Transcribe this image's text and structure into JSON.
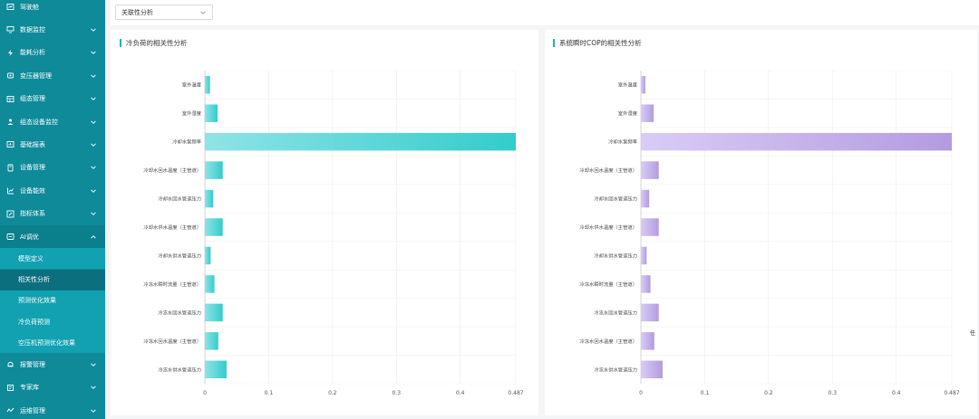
{
  "sidebar": {
    "items": [
      {
        "label": "驾驶舱",
        "icon": "dashboard-icon",
        "expandable": false
      },
      {
        "label": "数据监控",
        "icon": "monitor-icon",
        "expandable": true
      },
      {
        "label": "能耗分析",
        "icon": "energy-icon",
        "expandable": true
      },
      {
        "label": "变压器管理",
        "icon": "transformer-icon",
        "expandable": true
      },
      {
        "label": "组态管理",
        "icon": "config-icon",
        "expandable": true
      },
      {
        "label": "组态设备监控",
        "icon": "device-monitor-icon",
        "expandable": true
      },
      {
        "label": "基础报表",
        "icon": "report-icon",
        "expandable": true
      },
      {
        "label": "设备管理",
        "icon": "device-icon",
        "expandable": true
      },
      {
        "label": "设备能效",
        "icon": "efficiency-icon",
        "expandable": true
      },
      {
        "label": "指标体系",
        "icon": "indicator-icon",
        "expandable": true
      },
      {
        "label": "AI调优",
        "icon": "ai-icon",
        "expandable": true,
        "open": true
      }
    ],
    "ai_children": [
      {
        "label": "模型定义",
        "active": false
      },
      {
        "label": "相关性分析",
        "active": true
      },
      {
        "label": "预测优化效果",
        "active": false
      },
      {
        "label": "冷负荷预测",
        "active": false
      },
      {
        "label": "空压机预测优化效果",
        "active": false
      }
    ],
    "bottom_items": [
      {
        "label": "报警管理",
        "icon": "alarm-icon",
        "expandable": true
      },
      {
        "label": "专家库",
        "icon": "expert-icon",
        "expandable": true
      },
      {
        "label": "运维管理",
        "icon": "maintenance-icon",
        "expandable": true
      }
    ]
  },
  "filter": {
    "selected": "关联性分析"
  },
  "side_tab": "任",
  "colors": {
    "sidebar": "#0e8a99",
    "accent": "#1ab3c3",
    "cyan_bar": "#33cccc",
    "purple_bar": "#b9a3e3"
  },
  "chart_data": [
    {
      "type": "bar",
      "orientation": "horizontal",
      "title": "冷负荷的相关性分析",
      "categories": [
        "室外温度",
        "室外湿度",
        "冷却水泵频率",
        "冷却水回水温度（主管道）",
        "冷却水回水管道压力",
        "冷却水供水温度（主管道）",
        "冷却水供水管道压力",
        "冷冻水瞬时流量（主管道）",
        "冷冻水回水管道压力",
        "冷冻水回水温度（主管道）",
        "冷冻水供水管道压力"
      ],
      "values": [
        0.008,
        0.02,
        0.487,
        0.028,
        0.013,
        0.028,
        0.009,
        0.015,
        0.028,
        0.021,
        0.034
      ],
      "xlim": [
        0,
        0.487
      ],
      "xticks": [
        "0",
        "0.1",
        "0.2",
        "0.3",
        "0.4",
        "0.487"
      ],
      "grid": true,
      "color": "cyan"
    },
    {
      "type": "bar",
      "orientation": "horizontal",
      "title": "系统瞬时COP的相关性分析",
      "categories": [
        "室外温度",
        "室外湿度",
        "冷却水泵频率",
        "冷却水回水温度（主管道）",
        "冷却水回水管道压力",
        "冷却水供水温度（主管道）",
        "冷却水供水管道压力",
        "冷冻水瞬时流量（主管道）",
        "冷冻水回水管道压力",
        "冷冻水回水温度（主管道）",
        "冷冻水供水管道压力"
      ],
      "values": [
        0.007,
        0.02,
        0.487,
        0.028,
        0.013,
        0.028,
        0.009,
        0.015,
        0.028,
        0.021,
        0.034
      ],
      "xlim": [
        0,
        0.487
      ],
      "xticks": [
        "0",
        "0.1",
        "0.2",
        "0.3",
        "0.4",
        "0.487"
      ],
      "grid": true,
      "color": "purple"
    }
  ]
}
